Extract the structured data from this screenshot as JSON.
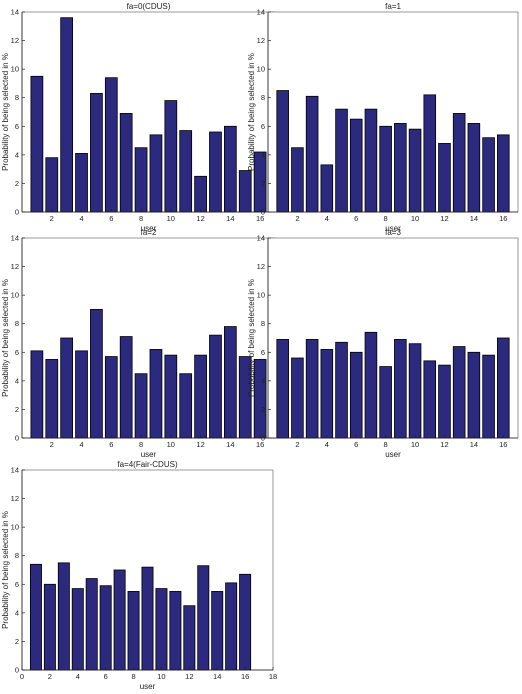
{
  "chart_data": [
    {
      "type": "bar",
      "title": "fa=0(CDUS)",
      "xlabel": "user",
      "ylabel": "Probability of being selected in %",
      "x": [
        1,
        2,
        3,
        4,
        5,
        6,
        7,
        8,
        9,
        10,
        11,
        12,
        13,
        14,
        15,
        16
      ],
      "values": [
        9.5,
        3.8,
        13.6,
        4.1,
        8.3,
        9.4,
        6.9,
        4.5,
        5.4,
        7.8,
        5.7,
        2.5,
        5.6,
        6.0,
        2.9,
        4.2
      ],
      "xlim": [
        0,
        17
      ],
      "ylim": [
        0,
        14
      ],
      "xticks": [
        2,
        4,
        6,
        8,
        10,
        12,
        14,
        16
      ],
      "yticks": [
        0,
        2,
        4,
        6,
        8,
        10,
        12,
        14
      ],
      "grid": false
    },
    {
      "type": "bar",
      "title": "fa=1",
      "xlabel": "user",
      "ylabel": "Probability of being selected in %",
      "x": [
        1,
        2,
        3,
        4,
        5,
        6,
        7,
        8,
        9,
        10,
        11,
        12,
        13,
        14,
        15,
        16
      ],
      "values": [
        8.5,
        4.5,
        8.1,
        3.3,
        7.2,
        6.5,
        7.2,
        6.0,
        6.2,
        5.8,
        8.2,
        4.8,
        6.9,
        6.2,
        5.2,
        5.4
      ],
      "xlim": [
        0,
        17
      ],
      "ylim": [
        0,
        14
      ],
      "xticks": [
        2,
        4,
        6,
        8,
        10,
        12,
        14,
        16
      ],
      "yticks": [
        0,
        2,
        4,
        6,
        8,
        10,
        12,
        14
      ],
      "grid": false
    },
    {
      "type": "bar",
      "title": "fa=2",
      "xlabel": "user",
      "ylabel": "Probability of being selected in %",
      "x": [
        1,
        2,
        3,
        4,
        5,
        6,
        7,
        8,
        9,
        10,
        11,
        12,
        13,
        14,
        15,
        16
      ],
      "values": [
        6.1,
        5.5,
        7.0,
        6.1,
        9.0,
        5.7,
        7.1,
        4.5,
        6.2,
        5.8,
        4.5,
        5.8,
        7.2,
        7.8,
        5.7,
        5.5
      ],
      "xlim": [
        0,
        17
      ],
      "ylim": [
        0,
        14
      ],
      "xticks": [
        2,
        4,
        6,
        8,
        10,
        12,
        14,
        16
      ],
      "yticks": [
        0,
        2,
        4,
        6,
        8,
        10,
        12,
        14
      ],
      "grid": false
    },
    {
      "type": "bar",
      "title": "fa=3",
      "xlabel": "user",
      "ylabel": "Probability of being selected in %",
      "x": [
        1,
        2,
        3,
        4,
        5,
        6,
        7,
        8,
        9,
        10,
        11,
        12,
        13,
        14,
        15,
        16
      ],
      "values": [
        6.9,
        5.6,
        6.9,
        6.2,
        6.7,
        6.0,
        7.4,
        5.0,
        6.9,
        6.6,
        5.4,
        5.1,
        6.4,
        6.0,
        5.8,
        7.0
      ],
      "xlim": [
        0,
        17
      ],
      "ylim": [
        0,
        14
      ],
      "xticks": [
        2,
        4,
        6,
        8,
        10,
        12,
        14,
        16
      ],
      "yticks": [
        0,
        2,
        4,
        6,
        8,
        10,
        12,
        14
      ],
      "grid": false
    },
    {
      "type": "bar",
      "title": "fa=4(Fair-CDUS)",
      "xlabel": "user",
      "ylabel": "Probability of being selected in %",
      "x": [
        1,
        2,
        3,
        4,
        5,
        6,
        7,
        8,
        9,
        10,
        11,
        12,
        13,
        14,
        15,
        16
      ],
      "values": [
        7.4,
        6.0,
        7.5,
        5.7,
        6.4,
        5.9,
        7.0,
        5.5,
        7.2,
        5.7,
        5.5,
        4.5,
        7.3,
        5.5,
        6.1,
        6.7
      ],
      "xlim": [
        0,
        18
      ],
      "ylim": [
        0,
        14
      ],
      "xticks": [
        0,
        2,
        4,
        6,
        8,
        10,
        12,
        14,
        16,
        18
      ],
      "yticks": [
        0,
        2,
        4,
        6,
        8,
        10,
        12,
        14
      ],
      "grid": false
    }
  ]
}
